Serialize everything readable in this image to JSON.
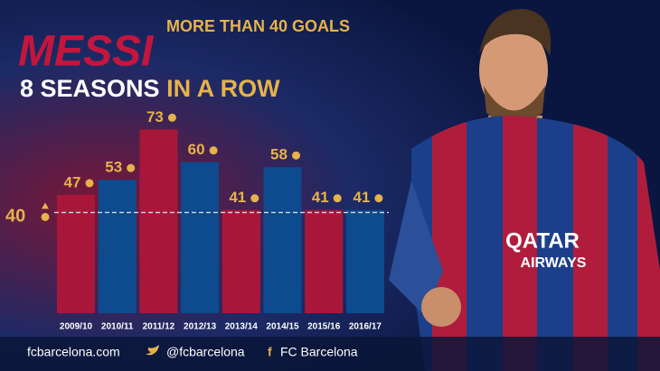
{
  "chart_data": {
    "type": "bar",
    "title": "MESSI",
    "subtitle": "MORE THAN 40 GOALS",
    "headline": [
      "8 SEASONS",
      "IN A ROW"
    ],
    "categories": [
      "2009/10",
      "2010/11",
      "2011/12",
      "2012/13",
      "2013/14",
      "2014/15",
      "2015/16",
      "2016/17"
    ],
    "values": [
      47,
      53,
      73,
      60,
      41,
      58,
      41,
      41
    ],
    "colors": [
      "#a8173a",
      "#0d4b8e",
      "#a8173a",
      "#0d4b8e",
      "#a8173a",
      "#0d4b8e",
      "#a8173a",
      "#0d4b8e"
    ],
    "ylim": [
      0,
      76
    ],
    "reference_line": 40,
    "footer": [
      "fcbarcelona.com",
      "@fcbarcelona",
      "FC Barcelona"
    ]
  }
}
